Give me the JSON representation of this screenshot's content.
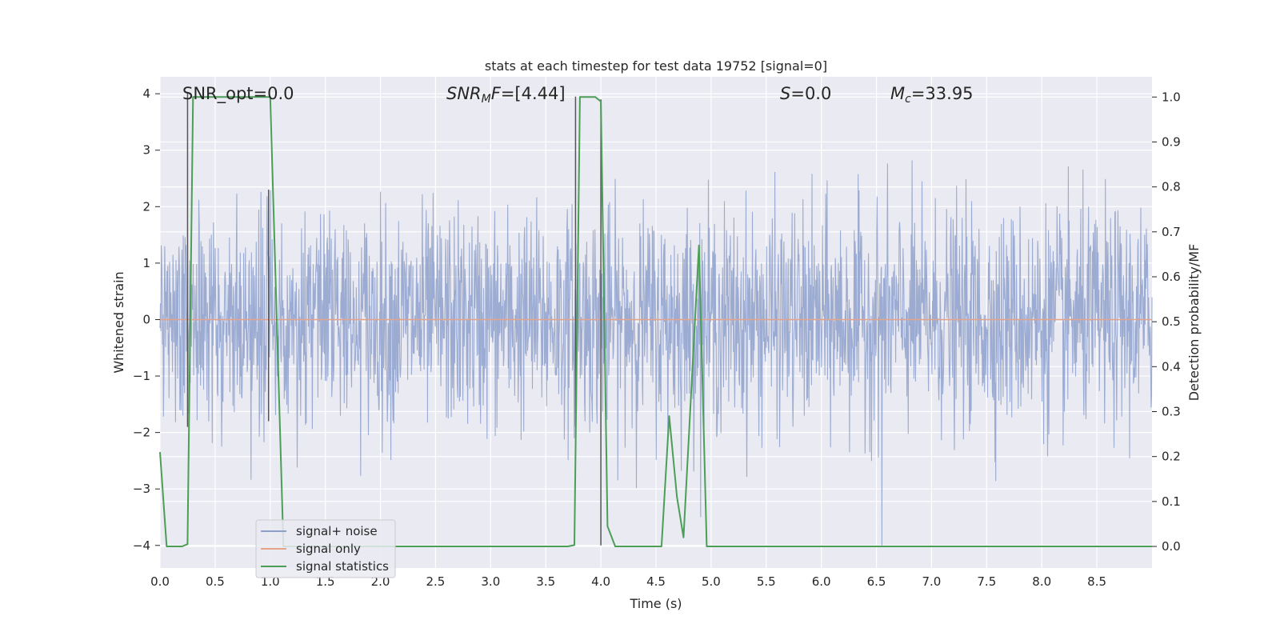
{
  "chart_data": {
    "type": "line",
    "title": "stats at each timestep for test data 19752 [signal=0]",
    "xlabel": "Time (s)",
    "ylabel_left": "Whitened strain",
    "ylabel_right": "Detection probability/MF",
    "xlim": [
      0.0,
      9.0
    ],
    "ylim_left": [
      -4.4,
      4.3
    ],
    "ylim_right": [
      -0.048,
      1.045
    ],
    "x_ticks": [
      "0.0",
      "0.5",
      "1.0",
      "1.5",
      "2.0",
      "2.5",
      "3.0",
      "3.5",
      "4.0",
      "4.5",
      "5.0",
      "5.5",
      "6.0",
      "6.5",
      "7.0",
      "7.5",
      "8.0",
      "8.5"
    ],
    "y_ticks_left": [
      "4",
      "3",
      "2",
      "1",
      "0",
      "−1",
      "−2",
      "−3",
      "−4"
    ],
    "y_ticks_right": [
      "1.0",
      "0.9",
      "0.8",
      "0.7",
      "0.6",
      "0.5",
      "0.4",
      "0.3",
      "0.2",
      "0.1",
      "0.0"
    ],
    "grid": true,
    "annotations": {
      "snr_opt": "SNR_opt=0.0",
      "snr_mf_italic": "SNR",
      "snr_mf_sub": "M",
      "snr_mf_italic2": "F",
      "snr_mf_value": "=[4.44]",
      "s_italic": "S",
      "s_value": "=0.0",
      "mc_italic": "M",
      "mc_sub": "c",
      "mc_value": "=33.95"
    },
    "legend": {
      "location": "lower-left",
      "entries": [
        {
          "label": "signal+ noise",
          "color": "#8da0cb"
        },
        {
          "label": "signal only",
          "color": "#e5a48a"
        },
        {
          "label": "signal statistics",
          "color": "#4c9e57"
        }
      ]
    },
    "series": [
      {
        "name": "signal+ noise",
        "axis": "left",
        "color": "#8da0cb",
        "description": "whitened noise, approx. Gaussian band between about -2.5 and +2.5 with spikes reaching about +/-3.5 (and -4 near t=6.55)"
      },
      {
        "name": "signal only",
        "axis": "left",
        "color": "#e5a48a",
        "x": [
          0.0,
          9.0
        ],
        "y": [
          0.0,
          0.0
        ]
      },
      {
        "name": "signal statistics",
        "axis": "right",
        "color": "#4c9e57",
        "x": [
          0.0,
          0.06,
          0.2,
          0.25,
          0.3,
          1.0,
          1.12,
          1.15,
          3.7,
          3.76,
          3.81,
          3.95,
          4.0,
          4.06,
          4.13,
          4.55,
          4.62,
          4.69,
          4.75,
          4.89,
          4.96,
          5.0,
          9.0
        ],
        "y": [
          0.21,
          0.0,
          0.0,
          0.005,
          1.0,
          1.0,
          0.0,
          0.0,
          0.0,
          0.003,
          1.0,
          1.0,
          0.99,
          0.045,
          0.0,
          0.0,
          0.29,
          0.11,
          0.02,
          0.67,
          0.0,
          0.0,
          0.0
        ]
      },
      {
        "name": "detection markers",
        "axis": "left",
        "color": "#555555",
        "x": [
          0.25,
          0.985,
          3.77,
          4.0
        ],
        "y_top": [
          4.0,
          2.3,
          3.95,
          3.9
        ],
        "y_bottom": [
          -1.9,
          -1.8,
          -1.9,
          -4.0
        ]
      }
    ]
  }
}
